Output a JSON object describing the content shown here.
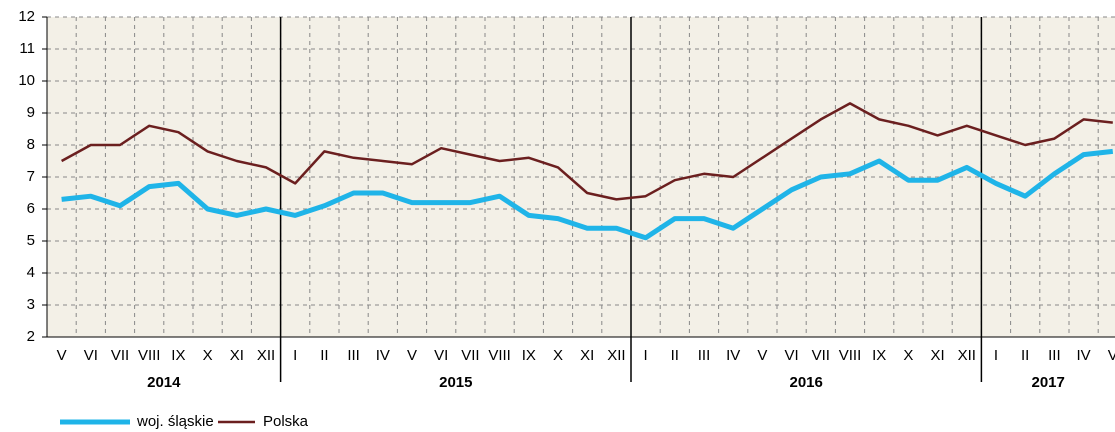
{
  "chart_data": {
    "type": "line",
    "groups": [
      {
        "name": "2014",
        "categories": [
          "V",
          "VI",
          "VII",
          "VIII",
          "IX",
          "X",
          "XI",
          "XII"
        ]
      },
      {
        "name": "2015",
        "categories": [
          "I",
          "II",
          "III",
          "IV",
          "V",
          "VI",
          "VII",
          "VIII",
          "IX",
          "X",
          "XI",
          "XII"
        ]
      },
      {
        "name": "2016",
        "categories": [
          "I",
          "II",
          "III",
          "IV",
          "V",
          "VI",
          "VII",
          "VIII",
          "IX",
          "X",
          "XI",
          "XII"
        ]
      },
      {
        "name": "2017",
        "categories": [
          "I",
          "II",
          "III",
          "IV",
          "V"
        ]
      }
    ],
    "series": [
      {
        "name": "woj. śląskie",
        "color": "#1fb4e8",
        "values": [
          6.3,
          6.4,
          6.1,
          6.7,
          6.8,
          6.0,
          5.8,
          6.0,
          5.8,
          6.1,
          6.5,
          6.5,
          6.2,
          6.2,
          6.2,
          6.4,
          5.8,
          5.7,
          5.4,
          5.4,
          5.1,
          5.7,
          5.7,
          5.4,
          6.0,
          6.6,
          7.0,
          7.1,
          7.5,
          6.9,
          6.9,
          7.3,
          6.8,
          6.4,
          7.1,
          7.7,
          7.8
        ]
      },
      {
        "name": "Polska",
        "color": "#6b1f1f",
        "values": [
          7.5,
          8.0,
          8.0,
          8.6,
          8.4,
          7.8,
          7.5,
          7.3,
          6.8,
          7.8,
          7.6,
          7.5,
          7.4,
          7.9,
          7.7,
          7.5,
          7.6,
          7.3,
          6.5,
          6.3,
          6.4,
          6.9,
          7.1,
          7.0,
          7.6,
          8.2,
          8.8,
          9.3,
          8.8,
          8.6,
          8.3,
          8.6,
          8.3,
          8.0,
          8.2,
          8.8,
          8.7
        ]
      }
    ],
    "ylim": [
      2,
      12
    ],
    "yticks": [
      2,
      3,
      4,
      5,
      6,
      7,
      8,
      9,
      10,
      11,
      12
    ],
    "grid": true
  }
}
